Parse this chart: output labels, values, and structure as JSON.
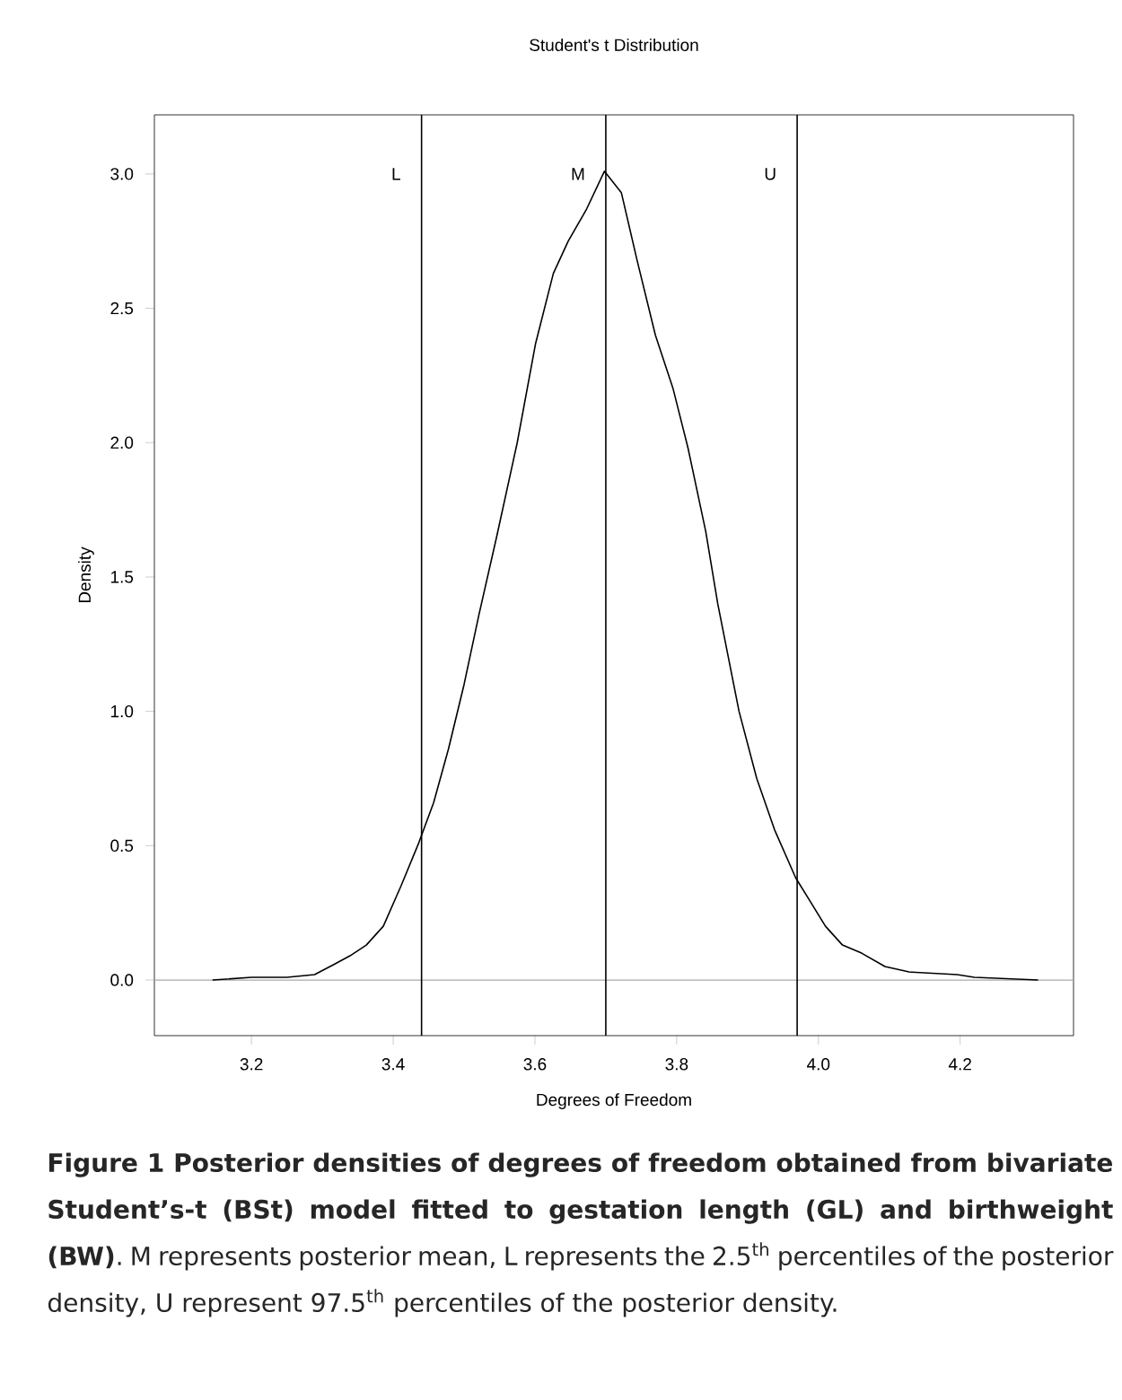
{
  "chart_data": {
    "type": "line",
    "title": "Student's t Distribution",
    "xlabel": "Degrees of Freedom",
    "ylabel": "Density",
    "x": [
      3.145,
      3.2,
      3.25,
      3.289,
      3.318,
      3.339,
      3.362,
      3.386,
      3.411,
      3.436,
      3.457,
      3.478,
      3.5,
      3.521,
      3.546,
      3.575,
      3.601,
      3.626,
      3.647,
      3.673,
      3.698,
      3.722,
      3.744,
      3.77,
      3.795,
      3.816,
      3.841,
      3.858,
      3.888,
      3.913,
      3.938,
      3.968,
      3.989,
      4.01,
      4.034,
      4.061,
      4.094,
      4.128,
      4.196,
      4.22,
      4.31
    ],
    "series": [
      {
        "color": "#000000",
        "values": [
          0,
          0.01,
          0.01,
          0.02,
          0.06,
          0.09,
          0.13,
          0.2,
          0.35,
          0.51,
          0.66,
          0.86,
          1.1,
          1.36,
          1.65,
          2.0,
          2.37,
          2.63,
          2.75,
          2.87,
          3.01,
          2.93,
          2.68,
          2.4,
          2.2,
          1.98,
          1.67,
          1.4,
          1.0,
          0.75,
          0.56,
          0.38,
          0.29,
          0.2,
          0.13,
          0.1,
          0.05,
          0.03,
          0.02,
          0.01,
          0
        ]
      }
    ],
    "xlim": [
      3.063,
      4.36
    ],
    "ylim": [
      -0.207,
      3.22
    ],
    "xticks": [
      3.2,
      3.4,
      3.6,
      3.8,
      {
        "value": 4,
        "label": "4.0"
      },
      4.2
    ],
    "yticks": [
      {
        "value": 0,
        "label": "0.0"
      },
      0.5,
      {
        "value": 1,
        "label": "1.0"
      },
      1.5,
      {
        "value": 2,
        "label": "2.0"
      },
      2.5,
      {
        "value": 3,
        "label": "3.0"
      }
    ],
    "ref_lines": [
      {
        "axis": "y",
        "value": 0,
        "color": "#aaaaaa"
      },
      {
        "axis": "x",
        "value": 3.44,
        "label": "L",
        "color": "#000000"
      },
      {
        "axis": "x",
        "value": 3.7,
        "label": "M",
        "color": "#000000"
      },
      {
        "axis": "x",
        "value": 3.97,
        "label": "U",
        "color": "#000000"
      }
    ],
    "grid": false,
    "marker": "none",
    "line_style": "solid",
    "annotations": [
      "**Figure 1 Posterior densities of degrees of freedom obtained from bivariate Student’s-t (BSt) model fitted to gestation length (GL) and birthweight (BW)**. M represents posterior mean, L represents the 2.5$^{th}$ percentiles of the posterior density, U represent 97.5$^{th}$ percentiles of the posterior density."
    ]
  }
}
